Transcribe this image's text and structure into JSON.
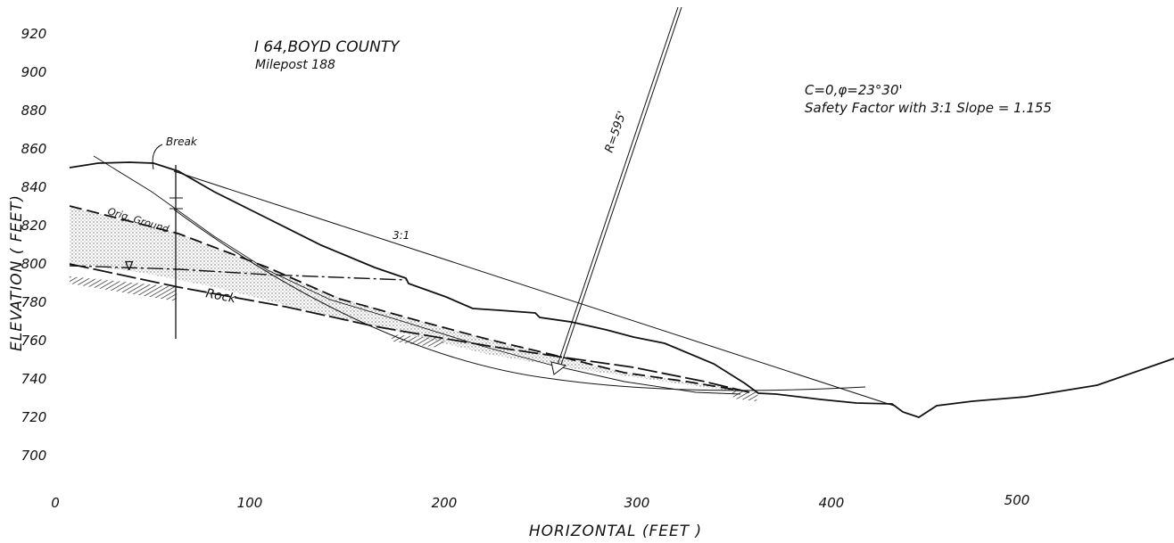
{
  "header": {
    "title": "I 64,BOYD COUNTY",
    "subtitle": "Milepost 188"
  },
  "parameters": {
    "strength": "C=0,φ=23°30'",
    "safety_factor": "Safety Factor with 3:1 Slope = 1.155"
  },
  "axes": {
    "y_title": "ELEVATION ( FEET)",
    "x_title": "HORIZONTAL (FEET )",
    "y_ticks": [
      "920",
      "900",
      "880",
      "860",
      "840",
      "820",
      "800",
      "780",
      "760",
      "740",
      "720",
      "700",
      "0"
    ],
    "x_ticks": [
      "100",
      "200",
      "300",
      "400",
      "500"
    ]
  },
  "labels": {
    "break": "Break",
    "slope": "3:1",
    "radius": "R=595'",
    "orig_ground": "Orig. Ground",
    "rock": "Rock",
    "water_table": "∇"
  }
}
